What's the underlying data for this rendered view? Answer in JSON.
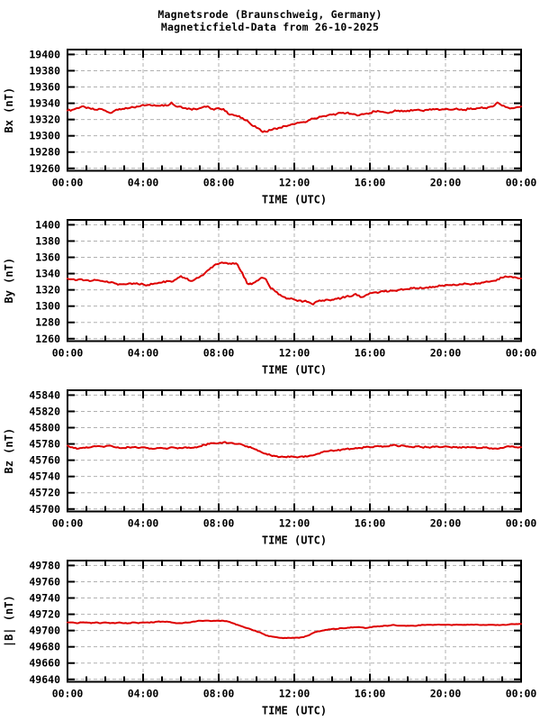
{
  "title": {
    "line1": "Magnetsrode (Braunschweig, Germany)",
    "line2": "Magneticfield-Data from 26-10-2025"
  },
  "colors": {
    "line": "#dd0000",
    "grid": "#b0b0b0",
    "axis": "#000000",
    "text": "#000000",
    "background": "#ffffff"
  },
  "x_axis": {
    "label": "TIME (UTC)",
    "range_hours": [
      0,
      24
    ],
    "major_tick_hours": [
      0,
      4,
      8,
      12,
      16,
      20,
      24
    ],
    "tick_labels": [
      "00:00",
      "04:00",
      "08:00",
      "12:00",
      "16:00",
      "20:00",
      "00:00"
    ],
    "minor_tick_step_hours": 1,
    "grid": "dashed-vertical-at-major-ticks"
  },
  "chart_data": [
    {
      "type": "line",
      "name": "Bx",
      "ylabel": "Bx (nT)",
      "xlabel": "TIME (UTC)",
      "yticks": [
        19400,
        19380,
        19360,
        19340,
        19320,
        19300,
        19280,
        19260
      ],
      "ylim": [
        19257,
        19406
      ],
      "x_start_hour": 0,
      "x_step_hours": 0.25,
      "noise_nT": 1.1,
      "values": [
        19331,
        19332,
        19334,
        19336,
        19334,
        19333,
        19332,
        19333,
        19331,
        19328,
        19331,
        19333,
        19333,
        19334,
        19335,
        19336,
        19338,
        19338,
        19337,
        19337,
        19338,
        19337,
        19341,
        19336,
        19336,
        19334,
        19333,
        19333,
        19334,
        19336,
        19335,
        19332,
        19334,
        19333,
        19327,
        19326,
        19324,
        19322,
        19319,
        19313,
        19310,
        19306,
        19305,
        19307,
        19309,
        19310,
        19312,
        19313,
        19314,
        19316,
        19317,
        19319,
        19321,
        19322,
        19324,
        19325,
        19326,
        19327,
        19328,
        19328,
        19327,
        19326,
        19326,
        19327,
        19328,
        19330,
        19330,
        19329,
        19328,
        19330,
        19331,
        19330,
        19331,
        19331,
        19332,
        19331,
        19332,
        19332,
        19333,
        19332,
        19333,
        19332,
        19333,
        19332,
        19332,
        19333,
        19333,
        19334,
        19334,
        19335,
        19336,
        19341,
        19337,
        19335,
        19334,
        19335,
        19336
      ]
    },
    {
      "type": "line",
      "name": "By",
      "ylabel": "By (nT)",
      "xlabel": "TIME (UTC)",
      "yticks": [
        1400,
        1380,
        1360,
        1340,
        1320,
        1300,
        1280,
        1260
      ],
      "ylim": [
        1257,
        1406
      ],
      "x_start_hour": 0,
      "x_step_hours": 0.25,
      "noise_nT": 1.1,
      "values": [
        1334,
        1333,
        1332,
        1333,
        1332,
        1331,
        1332,
        1331,
        1330,
        1329,
        1328,
        1327,
        1327,
        1328,
        1328,
        1327,
        1327,
        1326,
        1327,
        1328,
        1329,
        1331,
        1330,
        1333,
        1337,
        1334,
        1331,
        1333,
        1336,
        1340,
        1345,
        1350,
        1352,
        1353,
        1352,
        1353,
        1351,
        1341,
        1328,
        1327,
        1331,
        1335,
        1333,
        1322,
        1318,
        1314,
        1311,
        1309,
        1308,
        1307,
        1306,
        1305,
        1302,
        1306,
        1307,
        1308,
        1308,
        1309,
        1310,
        1312,
        1312,
        1315,
        1311,
        1313,
        1316,
        1317,
        1317,
        1318,
        1318,
        1319,
        1320,
        1320,
        1321,
        1322,
        1322,
        1322,
        1323,
        1323,
        1324,
        1325,
        1326,
        1326,
        1326,
        1327,
        1328,
        1327,
        1327,
        1328,
        1329,
        1330,
        1331,
        1333,
        1335,
        1336,
        1336,
        1335,
        1334
      ]
    },
    {
      "type": "line",
      "name": "Bz",
      "ylabel": "Bz (nT)",
      "xlabel": "TIME (UTC)",
      "yticks": [
        45840,
        45820,
        45800,
        45780,
        45760,
        45740,
        45720,
        45700
      ],
      "ylim": [
        45697,
        45846
      ],
      "x_start_hour": 0,
      "x_step_hours": 0.25,
      "noise_nT": 0.8,
      "values": [
        45778,
        45776,
        45774,
        45775,
        45776,
        45776,
        45777,
        45777,
        45777,
        45778,
        45776,
        45775,
        45775,
        45776,
        45776,
        45775,
        45776,
        45775,
        45774,
        45775,
        45775,
        45774,
        45776,
        45775,
        45775,
        45776,
        45775,
        45776,
        45777,
        45779,
        45780,
        45781,
        45781,
        45782,
        45781,
        45781,
        45780,
        45779,
        45777,
        45775,
        45773,
        45770,
        45768,
        45766,
        45765,
        45764,
        45764,
        45764,
        45764,
        45764,
        45764,
        45765,
        45766,
        45768,
        45770,
        45771,
        45772,
        45772,
        45773,
        45774,
        45774,
        45775,
        45775,
        45776,
        45776,
        45777,
        45777,
        45777,
        45777,
        45779,
        45777,
        45778,
        45777,
        45776,
        45777,
        45776,
        45776,
        45776,
        45777,
        45776,
        45777,
        45776,
        45776,
        45776,
        45776,
        45776,
        45776,
        45775,
        45776,
        45775,
        45774,
        45774,
        45775,
        45777,
        45777,
        45776,
        45776
      ]
    },
    {
      "type": "line",
      "name": "|B|",
      "ylabel": "|B| (nT)",
      "xlabel": "TIME (UTC)",
      "yticks": [
        49780,
        49760,
        49740,
        49720,
        49700,
        49680,
        49660,
        49640
      ],
      "ylim": [
        49637,
        49786
      ],
      "x_start_hour": 0,
      "x_step_hours": 0.25,
      "noise_nT": 0.4,
      "values": [
        49710,
        49710,
        49709,
        49710,
        49710,
        49709,
        49710,
        49709,
        49710,
        49709,
        49709,
        49710,
        49709,
        49709,
        49710,
        49709,
        49710,
        49710,
        49710,
        49711,
        49711,
        49711,
        49710,
        49709,
        49709,
        49710,
        49710,
        49711,
        49712,
        49712,
        49712,
        49712,
        49712,
        49712,
        49711,
        49709,
        49707,
        49705,
        49703,
        49701,
        49699,
        49697,
        49694,
        49693,
        49692,
        49691,
        49691,
        49691,
        49691,
        49691,
        49692,
        49694,
        49697,
        49699,
        49700,
        49701,
        49702,
        49702,
        49703,
        49703,
        49704,
        49704,
        49704,
        49703,
        49704,
        49705,
        49705,
        49706,
        49706,
        49707,
        49706,
        49706,
        49706,
        49706,
        49706,
        49707,
        49707,
        49707,
        49707,
        49707,
        49707,
        49707,
        49707,
        49707,
        49707,
        49707,
        49707,
        49707,
        49707,
        49707,
        49707,
        49707,
        49707,
        49707,
        49708,
        49708,
        49708
      ]
    }
  ]
}
